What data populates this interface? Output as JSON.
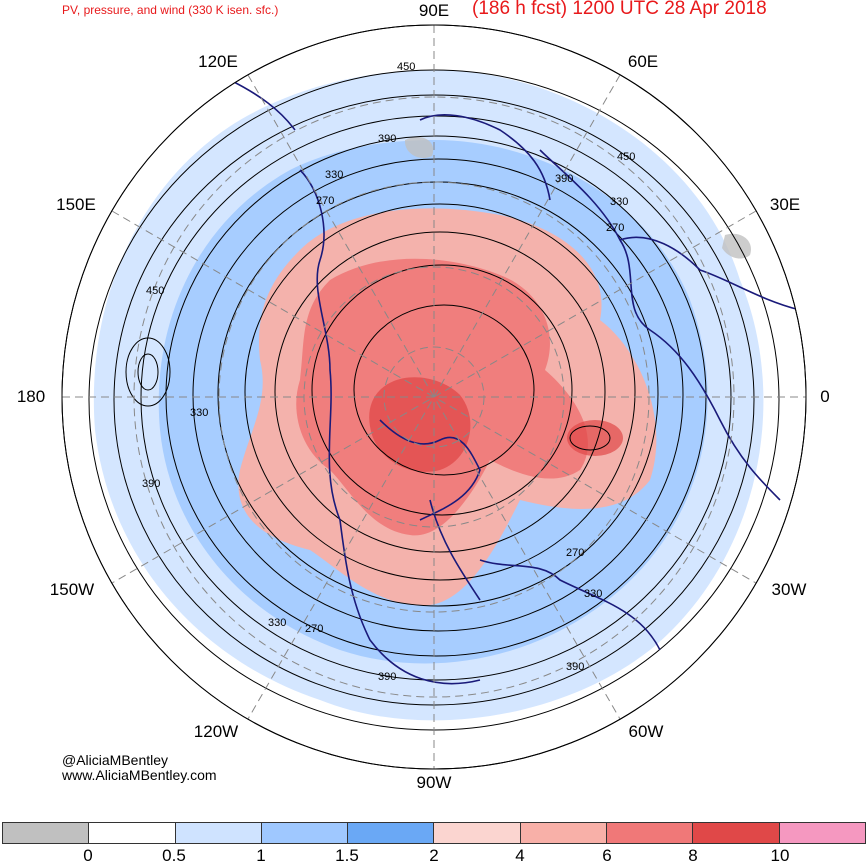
{
  "header": {
    "left_title": "PV, pressure, and wind (330 K isen. sfc.)",
    "right_title": "(186 h fcst) 1200 UTC 28 Apr 2018"
  },
  "longitude_labels": {
    "e90": "90E",
    "e60": "60E",
    "e120": "120E",
    "e30": "30E",
    "e150": "150E",
    "zero": "0",
    "l180": "180",
    "w30": "30W",
    "w150": "150W",
    "w60": "60W",
    "w120": "120W",
    "w90": "90W"
  },
  "contour_labels": {
    "c1": "450",
    "c2": "390",
    "c3": "330",
    "c4": "270",
    "c5": "390",
    "c6": "450",
    "c7": "330",
    "c8": "270",
    "c9": "450",
    "c10": "330",
    "c11": "390",
    "c12": "270",
    "c13": "330",
    "c14": "390",
    "c15": "330",
    "c16": "270",
    "c17": "390"
  },
  "credits": {
    "handle": "@AliciaMBentley",
    "site": "www.AliciaMBentley.com"
  },
  "colorbar": {
    "colors": [
      "#c0c0c0",
      "#ffffff",
      "#cfe3ff",
      "#9fc8ff",
      "#6aa8f5",
      "#fbd5d0",
      "#f8b0a8",
      "#f07878",
      "#e04848",
      "#f598c0"
    ],
    "ticks": [
      "0",
      "0.5",
      "1",
      "1.5",
      "2",
      "4",
      "6",
      "8",
      "10"
    ]
  },
  "colors": {
    "title": "#e8191b",
    "coast": "#1a1a7a",
    "contour": "#000000",
    "grid": "#888888"
  }
}
